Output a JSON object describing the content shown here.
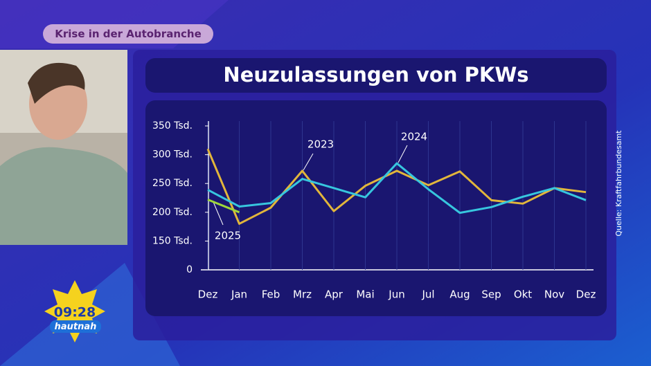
{
  "broadcast": {
    "topic": "Krise in der Autobranche",
    "clock": "09:28",
    "show": "hautnah"
  },
  "chart_data": {
    "type": "line",
    "title": "Neuzulassungen von PKWs",
    "source": "Quelle: Kraftfahrbundesamt",
    "categories": [
      "Dez",
      "Jan",
      "Feb",
      "Mrz",
      "Apr",
      "Mai",
      "Jun",
      "Jul",
      "Aug",
      "Sep",
      "Okt",
      "Nov",
      "Dez"
    ],
    "series": [
      {
        "name": "2023",
        "color": "#e2b63b",
        "values": [
          310,
          180,
          208,
          272,
          202,
          246,
          272,
          247,
          271,
          221,
          215,
          242,
          235
        ]
      },
      {
        "name": "2024",
        "color": "#37c6de",
        "values": [
          239,
          210,
          216,
          258,
          242,
          226,
          285,
          240,
          199,
          209,
          227,
          242,
          221
        ]
      },
      {
        "name": "2025",
        "color": "#9fd83a",
        "values": [
          222,
          200,
          null,
          null,
          null,
          null,
          null,
          null,
          null,
          null,
          null,
          null,
          null
        ]
      }
    ],
    "ylim": [
      0,
      350
    ],
    "axis_break": [
      50,
      150
    ],
    "yticks": [
      0,
      {
        "value": 150,
        "label": "150 Tsd."
      },
      {
        "value": 200,
        "label": "200 Tsd."
      },
      {
        "value": 250,
        "label": "250 Tsd."
      },
      {
        "value": 300,
        "label": "300 Tsd."
      },
      {
        "value": 350,
        "label": "350 Tsd."
      }
    ],
    "grid": true
  }
}
